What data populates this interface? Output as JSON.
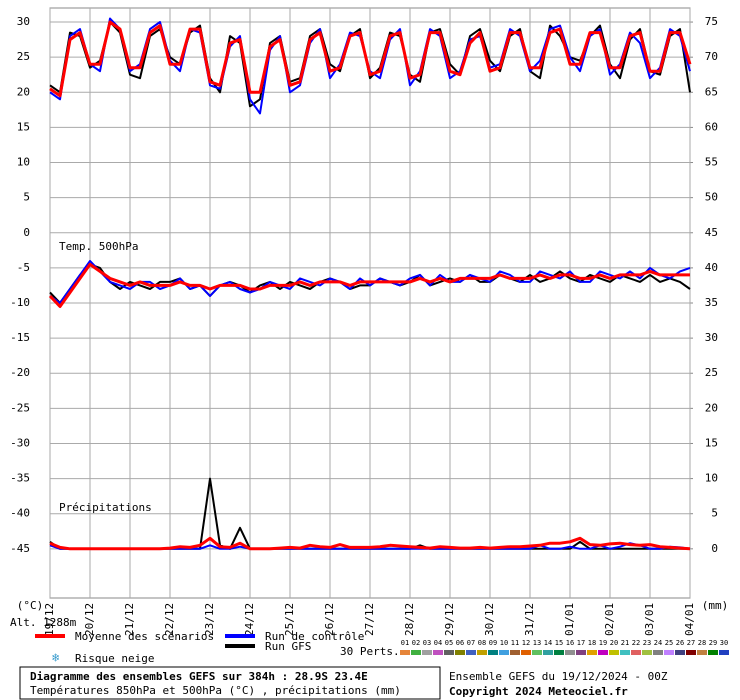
{
  "chart_data": {
    "type": "line",
    "title": "Diagramme des ensembles GEFS sur 384h : 28.9S 23.4E",
    "subtitle": "Températures 850hPa et 500hPa (°C) , précipitations (mm)",
    "run_info": "Ensemble GEFS du 19/12/2024 - 00Z",
    "copyright": "Copyright 2024 Meteociel.fr",
    "y_label": "(°C)",
    "y2_label": "(mm)",
    "altitude": "Alt. 1288m",
    "annotations": [
      "Temp. 500hPa",
      "Précipitations"
    ],
    "snow_label": "Risque neige",
    "perturbations_label": "30 Perts.",
    "grid": true,
    "categories": [
      "19/12",
      null,
      null,
      null,
      "20/12",
      null,
      null,
      null,
      "21/12",
      null,
      null,
      null,
      "22/12",
      null,
      null,
      null,
      "23/12",
      null,
      null,
      null,
      "24/12",
      null,
      null,
      null,
      "25/12",
      null,
      null,
      null,
      "26/12",
      null,
      null,
      null,
      "27/12",
      null,
      null,
      null,
      "28/12",
      null,
      null,
      null,
      "29/12",
      null,
      null,
      null,
      "30/12",
      null,
      null,
      null,
      "31/12",
      null,
      null,
      null,
      "01/01",
      null,
      null,
      null,
      "02/01",
      null,
      null,
      null,
      "03/01",
      null,
      null,
      null,
      "04/01"
    ],
    "ylim": [
      -52,
      32
    ],
    "yticks": [
      30,
      25,
      20,
      15,
      10,
      5,
      0,
      -5,
      -10,
      -15,
      -20,
      -25,
      -30,
      -35,
      -40,
      -45
    ],
    "y2lim": [
      -7,
      77
    ],
    "y2ticks": [
      75,
      70,
      65,
      60,
      55,
      50,
      45,
      40,
      35,
      30,
      25,
      20,
      15,
      10,
      5,
      0
    ],
    "series": [
      {
        "name": "Run GFS",
        "color": "#000000",
        "t850": [
          21,
          20,
          28.5,
          28,
          23.5,
          24.5,
          30,
          28.5,
          22.5,
          22,
          28,
          29,
          25,
          24,
          28.5,
          29.5,
          22,
          20,
          28,
          27,
          18,
          19,
          27,
          28,
          21.5,
          22,
          28,
          29,
          24,
          23,
          28,
          29,
          22,
          23.5,
          28.5,
          28,
          22.5,
          21.5,
          28.5,
          29,
          24,
          22.5,
          28,
          29,
          24.5,
          23,
          28,
          29,
          23,
          22,
          29.5,
          28,
          25,
          24.5,
          28,
          29.5,
          24,
          22,
          27.5,
          29,
          23,
          22.5,
          28,
          29,
          20
        ],
        "t500": [
          -8.5,
          -10,
          -8,
          -6,
          -4.5,
          -5,
          -7,
          -8,
          -7,
          -7.5,
          -8,
          -7,
          -7,
          -6.5,
          -8,
          -7.5,
          -9,
          -7.5,
          -7,
          -7.5,
          -8.5,
          -7.5,
          -7,
          -8,
          -7,
          -7.5,
          -8,
          -7,
          -6.5,
          -7,
          -8,
          -7.5,
          -7.5,
          -6.5,
          -7,
          -7.5,
          -7,
          -6,
          -7.5,
          -7,
          -6.5,
          -7,
          -6,
          -7,
          -7,
          -6,
          -6.5,
          -7,
          -6,
          -7,
          -6.5,
          -5.5,
          -6.5,
          -7,
          -6,
          -6.5,
          -7,
          -6,
          -6.5,
          -7,
          -6,
          -7,
          -6.5,
          -7,
          -8
        ],
        "precip": [
          1,
          0,
          0,
          0,
          0,
          0,
          0,
          0,
          0,
          0,
          0,
          0,
          0,
          0,
          0,
          0,
          10,
          0.5,
          0,
          3,
          0,
          0,
          0,
          0,
          0,
          0,
          0,
          0,
          0,
          0,
          0,
          0,
          0,
          0,
          0,
          0,
          0,
          0.5,
          0,
          0,
          0,
          0,
          0,
          0,
          0,
          0,
          0,
          0,
          0,
          0,
          0,
          0,
          0,
          1,
          0,
          0,
          0,
          0,
          0,
          0,
          0,
          0,
          0,
          0,
          0
        ]
      },
      {
        "name": "Run de contrôle",
        "color": "#0000ff",
        "t850": [
          20,
          19,
          28,
          29,
          24,
          23,
          30.5,
          29,
          23,
          24,
          29,
          30,
          24.5,
          23,
          29,
          28.5,
          21,
          20.5,
          26.5,
          28,
          19,
          17,
          26,
          28,
          20,
          21,
          27,
          29,
          22,
          24,
          28.5,
          28,
          23,
          22,
          27.5,
          29,
          21,
          23,
          29,
          28,
          22,
          23,
          27.5,
          28,
          23.5,
          24,
          29,
          28,
          23,
          24.5,
          29,
          29.5,
          25,
          23,
          28,
          29,
          22.5,
          24,
          28.5,
          27,
          22,
          23.5,
          29,
          28,
          23
        ],
        "t500": [
          -9,
          -10,
          -8,
          -6,
          -4,
          -5.5,
          -7,
          -7.5,
          -8,
          -7,
          -7,
          -8,
          -7.5,
          -6.5,
          -8,
          -7.5,
          -9,
          -7.5,
          -7,
          -8,
          -8.5,
          -8,
          -7,
          -7.5,
          -8,
          -6.5,
          -7,
          -7.5,
          -6.5,
          -7,
          -8,
          -6.5,
          -7.5,
          -6.5,
          -7,
          -7.5,
          -6.5,
          -6,
          -7.5,
          -6,
          -7,
          -7,
          -6,
          -6.5,
          -7,
          -5.5,
          -6,
          -7,
          -7,
          -5.5,
          -6,
          -6.5,
          -5.5,
          -7,
          -7,
          -5.5,
          -6,
          -6.5,
          -5.5,
          -6.5,
          -5,
          -6,
          -6.5,
          -5.5,
          -5
        ],
        "precip": [
          0.5,
          0,
          0,
          0,
          0,
          0,
          0,
          0,
          0,
          0,
          0,
          0,
          0,
          0,
          0,
          0,
          0.5,
          0,
          0,
          0.3,
          0,
          0,
          0,
          0,
          0,
          0,
          0,
          0,
          0,
          0,
          0,
          0,
          0,
          0,
          0,
          0,
          0,
          0,
          0,
          0,
          0,
          0,
          0,
          0,
          0,
          0,
          0,
          0,
          0,
          0.5,
          0,
          0,
          0.3,
          0,
          0,
          0.5,
          0,
          0.3,
          0.8,
          0.5,
          0,
          0,
          0.3,
          0.2,
          0
        ]
      },
      {
        "name": "Moyenne des scénarios",
        "color": "#ff0000",
        "t850": [
          20.5,
          19.5,
          27.5,
          28.5,
          24,
          24,
          30,
          29,
          23.5,
          23.5,
          28.5,
          29.5,
          24,
          24,
          29,
          29,
          21.5,
          21,
          27,
          27.5,
          20,
          20,
          26.5,
          27.5,
          21,
          21.5,
          27.5,
          28.5,
          23,
          23.5,
          28,
          28.5,
          22.5,
          23,
          28,
          28.5,
          22,
          22.5,
          28.5,
          28.5,
          23,
          22.5,
          27,
          28.5,
          23,
          23.5,
          28.5,
          28.5,
          23.5,
          23.5,
          28.5,
          29,
          24,
          24,
          28.5,
          28.5,
          23.5,
          23.5,
          28,
          28.5,
          23,
          23,
          28.5,
          28.5,
          24
        ],
        "t500": [
          -9,
          -10.5,
          -8.5,
          -6.5,
          -4.5,
          -5.5,
          -6.5,
          -7,
          -7.5,
          -7,
          -7.5,
          -7.5,
          -7.5,
          -7,
          -7.5,
          -7.5,
          -8,
          -7.5,
          -7.5,
          -7.5,
          -8,
          -8,
          -7.5,
          -7.5,
          -7.5,
          -7,
          -7.5,
          -7,
          -7,
          -7,
          -7.5,
          -7,
          -7,
          -7,
          -7,
          -7,
          -7,
          -6.5,
          -7,
          -6.5,
          -7,
          -6.5,
          -6.5,
          -6.5,
          -6.5,
          -6,
          -6.5,
          -6.5,
          -6.5,
          -6,
          -6.5,
          -6,
          -6,
          -6.5,
          -6.5,
          -6,
          -6.5,
          -6,
          -6,
          -6,
          -5.5,
          -6,
          -6,
          -6,
          -6
        ],
        "precip": [
          0.8,
          0.2,
          0,
          0,
          0,
          0,
          0,
          0,
          0,
          0,
          0,
          0,
          0.1,
          0.3,
          0.2,
          0.5,
          1.5,
          0.3,
          0.2,
          0.8,
          0,
          0,
          0,
          0.1,
          0.2,
          0.1,
          0.5,
          0.3,
          0.2,
          0.6,
          0.2,
          0.2,
          0.2,
          0.3,
          0.5,
          0.4,
          0.3,
          0.2,
          0.1,
          0.3,
          0.2,
          0.1,
          0.1,
          0.2,
          0.1,
          0.2,
          0.3,
          0.3,
          0.4,
          0.5,
          0.8,
          0.8,
          1,
          1.5,
          0.6,
          0.5,
          0.7,
          0.8,
          0.6,
          0.5,
          0.6,
          0.3,
          0.2,
          0.1,
          0
        ]
      }
    ],
    "perturbations": [
      {
        "name": "01",
        "color": "#e6853a"
      },
      {
        "name": "02",
        "color": "#40b040"
      },
      {
        "name": "03",
        "color": "#a0a0a0"
      },
      {
        "name": "04",
        "color": "#c050c0"
      },
      {
        "name": "05",
        "color": "#606060"
      },
      {
        "name": "06",
        "color": "#808000"
      },
      {
        "name": "07",
        "color": "#4060c0"
      },
      {
        "name": "08",
        "color": "#c0a000"
      },
      {
        "name": "09",
        "color": "#008080"
      },
      {
        "name": "10",
        "color": "#40a0e0"
      },
      {
        "name": "11",
        "color": "#a06030"
      },
      {
        "name": "12",
        "color": "#e06000"
      },
      {
        "name": "13",
        "color": "#60c060"
      },
      {
        "name": "14",
        "color": "#30a0a0"
      },
      {
        "name": "15",
        "color": "#008040"
      },
      {
        "name": "16",
        "color": "#909090"
      },
      {
        "name": "17",
        "color": "#804080"
      },
      {
        "name": "18",
        "color": "#e0a000"
      },
      {
        "name": "19",
        "color": "#c000c0"
      },
      {
        "name": "20",
        "color": "#c0c000"
      },
      {
        "name": "21",
        "color": "#40c0c0"
      },
      {
        "name": "22",
        "color": "#e06060"
      },
      {
        "name": "23",
        "color": "#a0c040"
      },
      {
        "name": "24",
        "color": "#808080"
      },
      {
        "name": "25",
        "color": "#c080ff"
      },
      {
        "name": "26",
        "color": "#404080"
      },
      {
        "name": "27",
        "color": "#800000"
      },
      {
        "name": "28",
        "color": "#c08040"
      },
      {
        "name": "29",
        "color": "#008000"
      },
      {
        "name": "30",
        "color": "#2040c0"
      }
    ]
  }
}
